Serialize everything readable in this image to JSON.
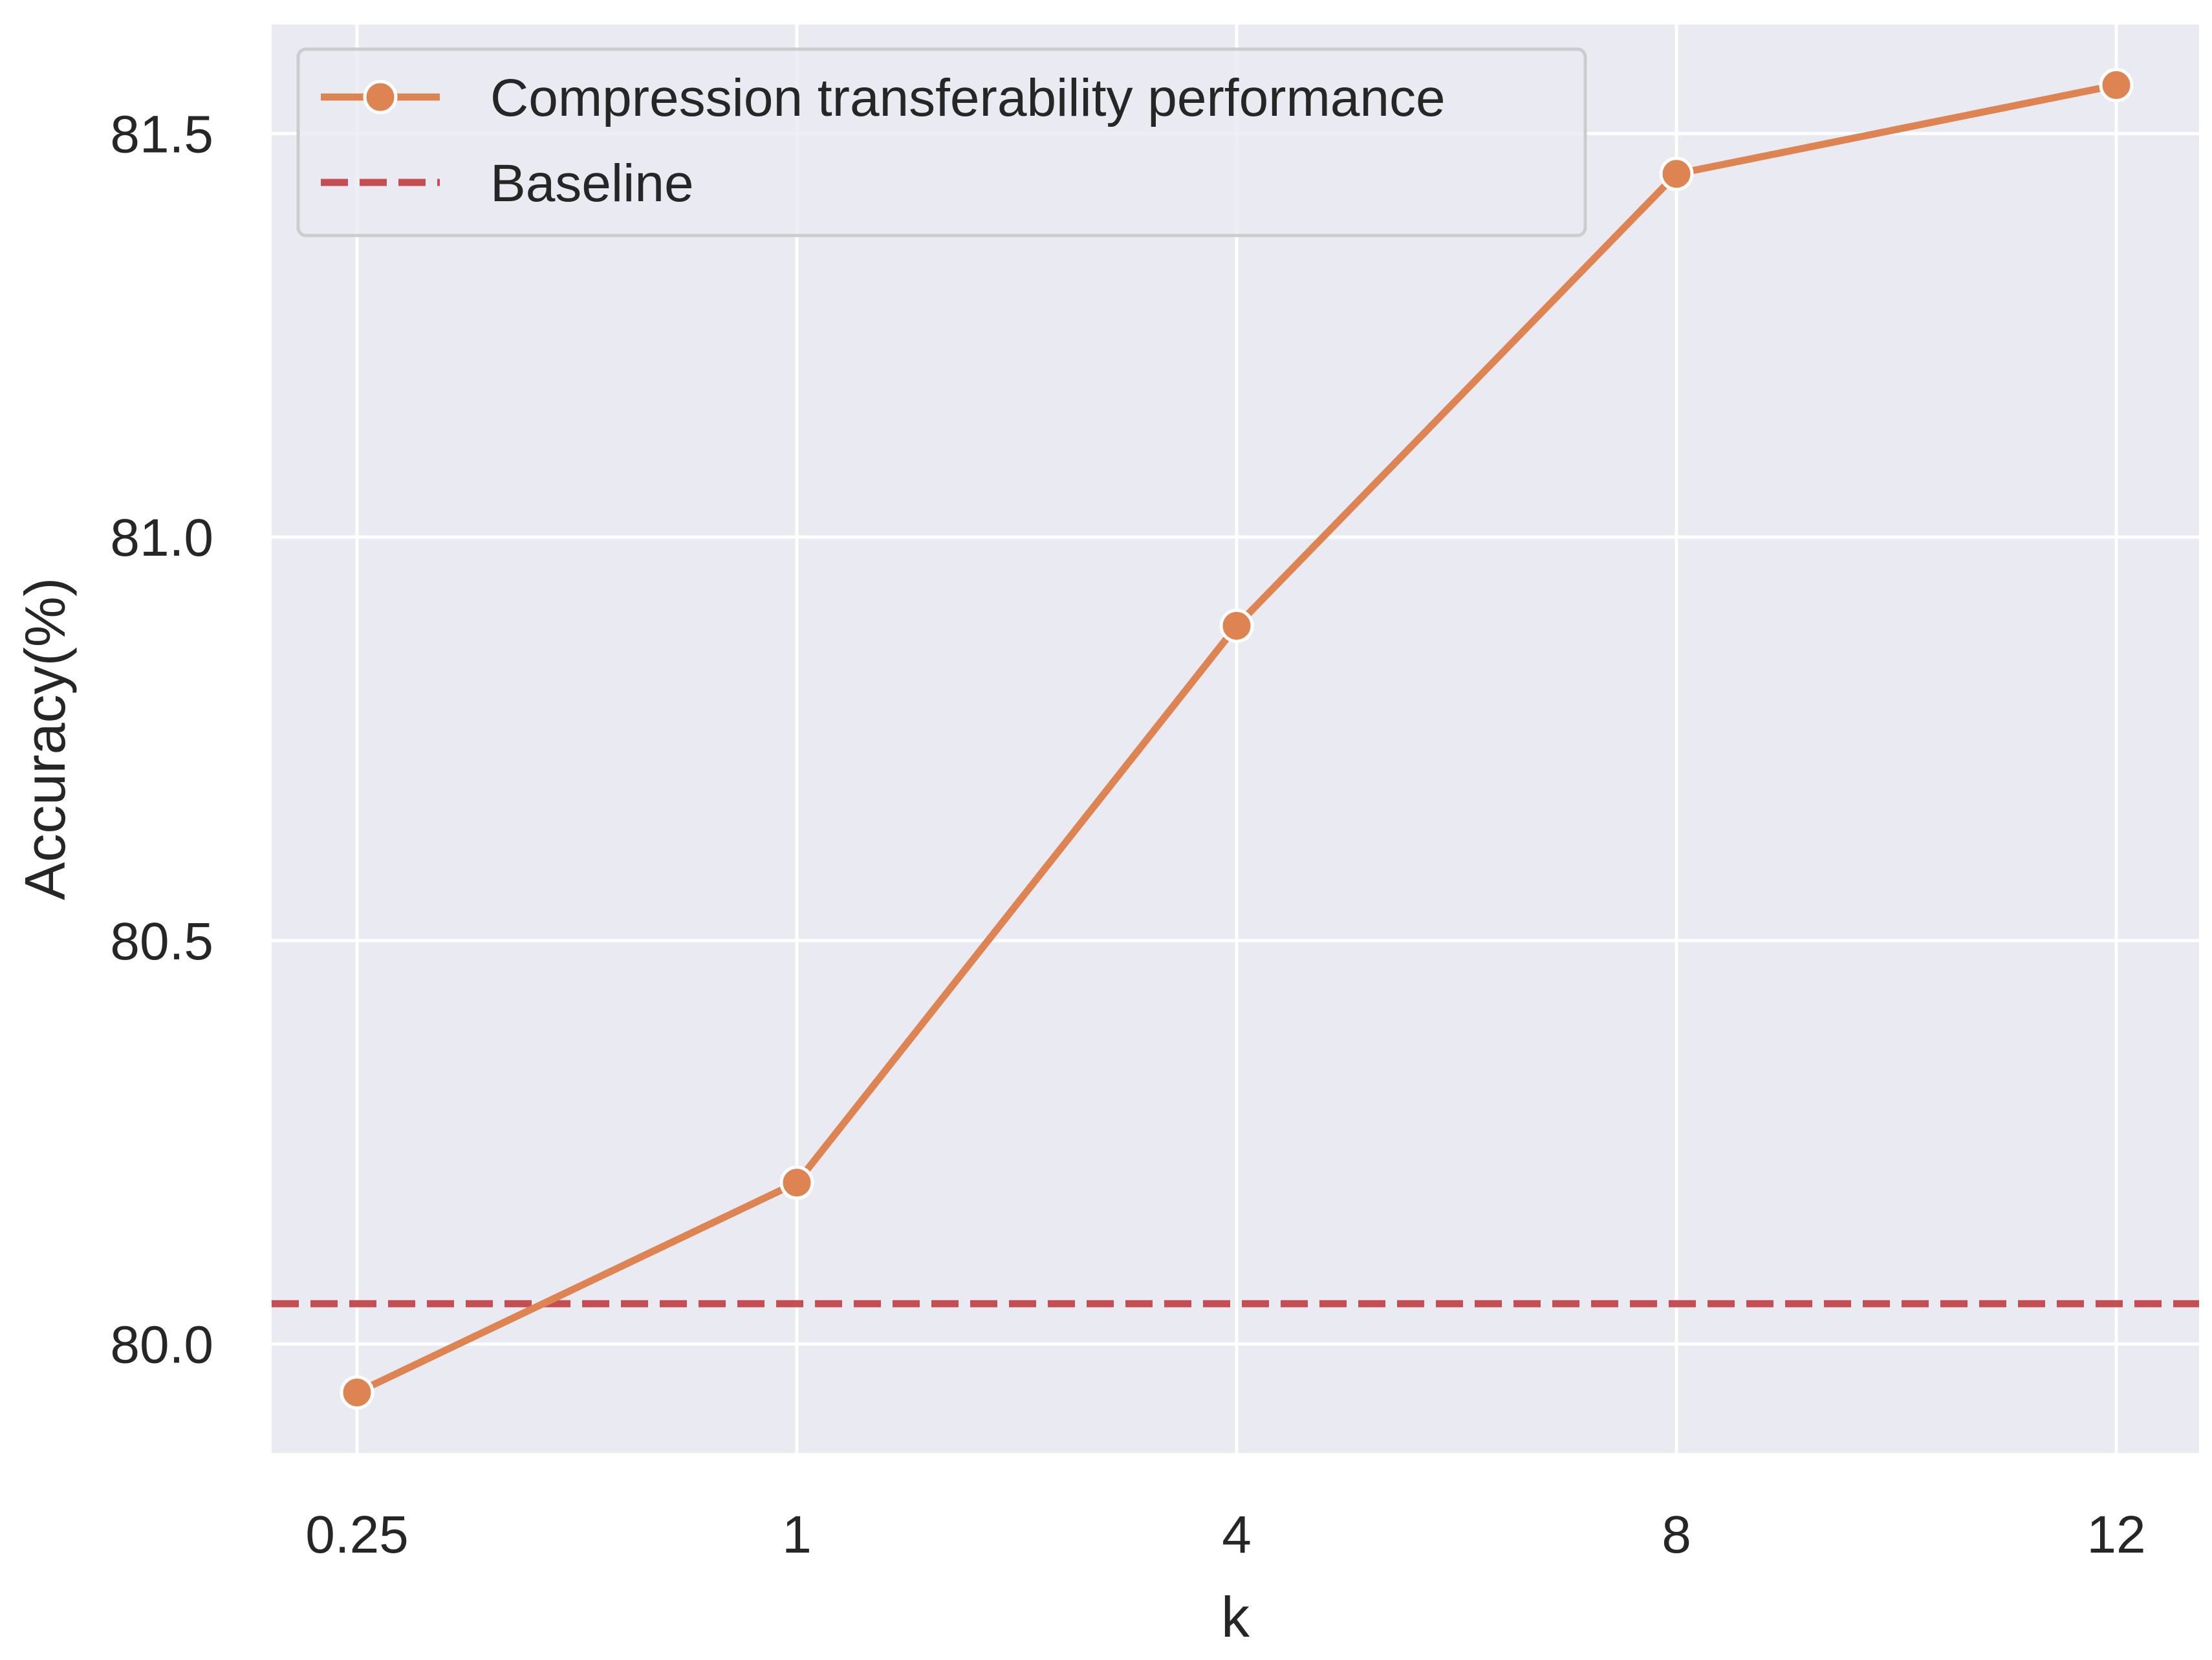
{
  "chart_data": {
    "type": "line",
    "x_categories": [
      "0.25",
      "1",
      "4",
      "8",
      "12"
    ],
    "series": [
      {
        "name": "Compression transferability performance",
        "values": [
          79.94,
          80.2,
          80.89,
          81.45,
          81.56
        ],
        "color": "#dd8452",
        "style": "solid",
        "marker": "circle"
      }
    ],
    "baseline": {
      "name": "Baseline",
      "value": 80.05,
      "color": "#c44e52",
      "style": "dashed"
    },
    "xlabel": "k",
    "ylabel": "Accuracy(%)",
    "ylim": [
      79.865,
      81.635
    ],
    "yticks": [
      80.0,
      80.5,
      81.0,
      81.5
    ],
    "ytick_labels": [
      "80.0",
      "80.5",
      "81.0",
      "81.5"
    ],
    "grid": true,
    "legend_position": "top-left",
    "background_color": "#eaeaf2",
    "grid_color": "#ffffff"
  }
}
